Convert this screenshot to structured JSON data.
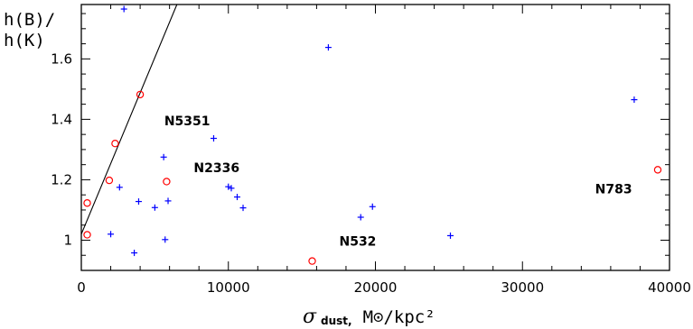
{
  "chart_data": {
    "type": "scatter",
    "ylabel_line1": "h(B)/",
    "ylabel_line2": "h(K)",
    "xlabel_symbol": "σ",
    "xlabel_subscript": "dust,",
    "xlabel_units": "M⊙/kpc²",
    "xlim": [
      0,
      40000
    ],
    "ylim": [
      0.9,
      1.78
    ],
    "xticks": [
      0,
      10000,
      20000,
      30000,
      40000
    ],
    "xtick_labels": [
      "0",
      "10000",
      "20000",
      "30000",
      "40000"
    ],
    "yticks": [
      1.0,
      1.2,
      1.4,
      1.6
    ],
    "ytick_labels": [
      "1",
      "1.2",
      "1.4",
      "1.6"
    ],
    "grid": false,
    "series": [
      {
        "marker": "plus",
        "color": "#0000ff",
        "points": [
          [
            2900,
            1.765
          ],
          [
            16800,
            1.638
          ],
          [
            37600,
            1.465
          ],
          [
            9000,
            1.337
          ],
          [
            5600,
            1.275
          ],
          [
            2600,
            1.175
          ],
          [
            3900,
            1.128
          ],
          [
            5900,
            1.13
          ],
          [
            5000,
            1.108
          ],
          [
            10000,
            1.177
          ],
          [
            10200,
            1.172
          ],
          [
            10600,
            1.143
          ],
          [
            11000,
            1.107
          ],
          [
            19800,
            1.111
          ],
          [
            19000,
            1.076
          ],
          [
            2000,
            1.02
          ],
          [
            5700,
            1.002
          ],
          [
            3600,
            0.958
          ],
          [
            25100,
            1.015
          ]
        ]
      },
      {
        "marker": "circle",
        "color": "#ff0000",
        "points": [
          [
            4000,
            1.482
          ],
          [
            2300,
            1.32
          ],
          [
            1900,
            1.198
          ],
          [
            5800,
            1.194
          ],
          [
            400,
            1.123
          ],
          [
            400,
            1.018
          ],
          [
            15700,
            0.931
          ],
          [
            39200,
            1.233
          ]
        ]
      }
    ],
    "line": {
      "color": "#000000",
      "points": [
        [
          0,
          1.02
        ],
        [
          6500,
          1.78
        ]
      ]
    },
    "annotations": [
      {
        "text": "N5351",
        "x": 7200,
        "y": 1.38
      },
      {
        "text": "N2336",
        "x": 9200,
        "y": 1.225
      },
      {
        "text": "N783",
        "x": 36200,
        "y": 1.155
      },
      {
        "text": "N532",
        "x": 18800,
        "y": 0.982
      }
    ]
  }
}
